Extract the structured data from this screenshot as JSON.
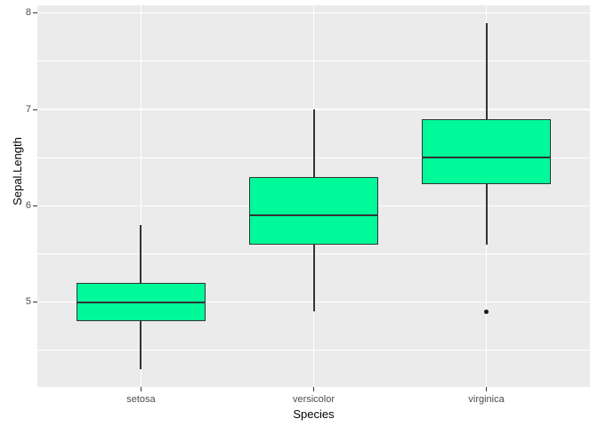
{
  "chart_data": {
    "type": "boxplot",
    "title": "",
    "xlabel": "Species",
    "ylabel": "Sepal.Length",
    "categories": [
      "setosa",
      "versicolor",
      "virginica"
    ],
    "series": [
      {
        "category": "setosa",
        "whisker_low": 4.3,
        "q1": 4.8,
        "median": 5.0,
        "q3": 5.2,
        "whisker_high": 5.8,
        "outliers": []
      },
      {
        "category": "versicolor",
        "whisker_low": 4.9,
        "q1": 5.6,
        "median": 5.9,
        "q3": 6.3,
        "whisker_high": 7.0,
        "outliers": []
      },
      {
        "category": "virginica",
        "whisker_low": 5.6,
        "q1": 6.225,
        "median": 6.5,
        "q3": 6.9,
        "whisker_high": 7.9,
        "outliers": [
          4.9
        ]
      }
    ],
    "y_ticks": [
      5,
      6,
      7,
      8
    ],
    "y_minor_ticks": [
      4.5,
      5.5,
      6.5,
      7.5
    ],
    "ylim": [
      4.12,
      8.08
    ],
    "grid": "on",
    "legend": "none",
    "colors": {
      "background": "#FFFFFF",
      "panel_background": "#EBEBEB",
      "grid_major": "#FFFFFF",
      "grid_minor": "#FFFFFF",
      "box_fill": "#00FA9A",
      "box_stroke": "#333333",
      "outlier": "#1A1A1A",
      "tick_text": "#4D4D4D",
      "tick_mark": "#333333",
      "title_text": "#000000"
    }
  }
}
